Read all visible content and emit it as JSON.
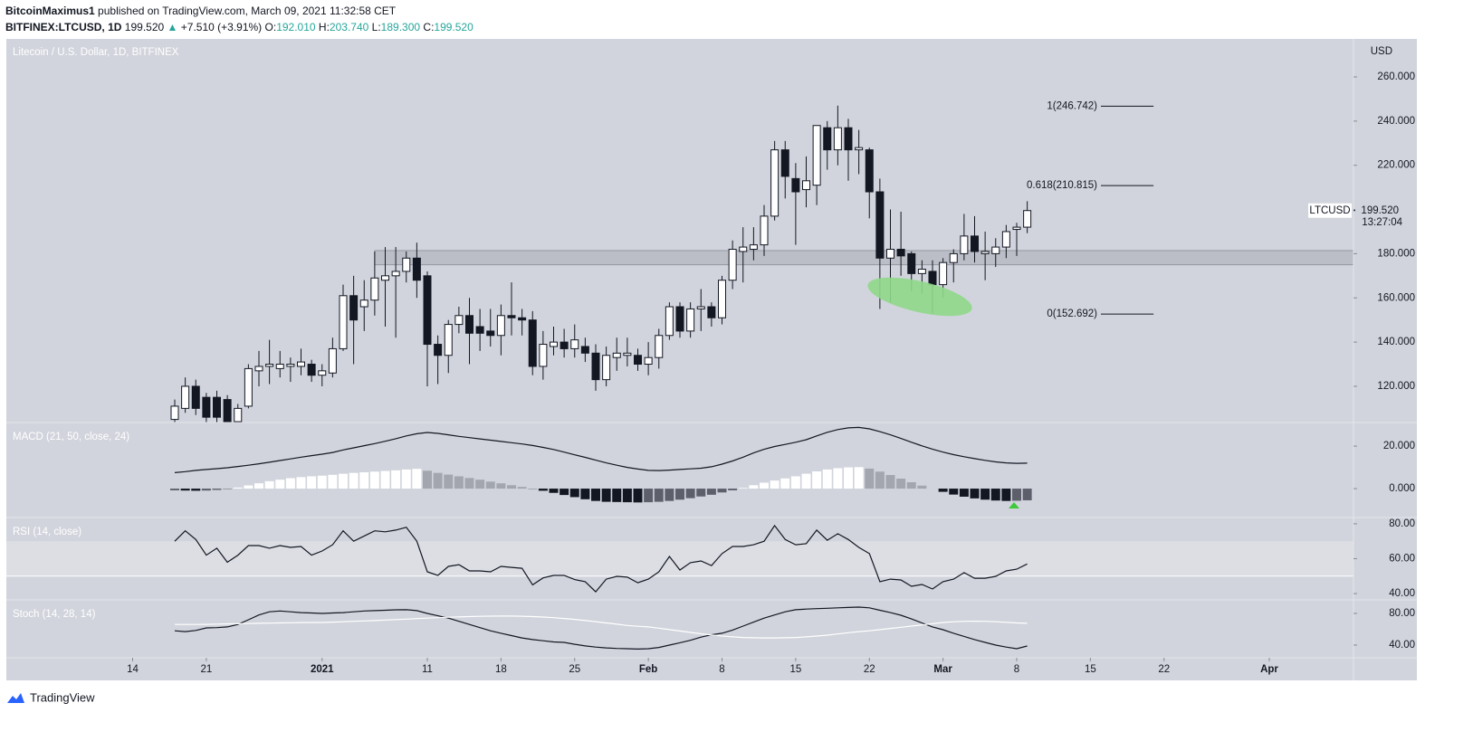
{
  "header": {
    "author": "BitcoinMaximus1",
    "published": "published on TradingView.com, March 09, 2021 11:32:58 CET",
    "symbol": "BITFINEX:LTCUSD, 1D",
    "last": "199.520",
    "change_arrow": "▲",
    "change": "+7.510 (+3.91%)",
    "ohlc": [
      {
        "label": "O:",
        "value": "192.010"
      },
      {
        "label": "H:",
        "value": "203.740"
      },
      {
        "label": "L:",
        "value": "189.300"
      },
      {
        "label": "C:",
        "value": "199.520"
      }
    ]
  },
  "footer": {
    "brand": "TradingView"
  },
  "chart_data": {
    "type": "candlestick",
    "title": "Litecoin / U.S. Dollar, 1D, BITFINEX",
    "y_unit": "USD",
    "up_color": "#ffffff",
    "down_color": "#131722",
    "x": [
      "2020-12-18",
      "2020-12-19",
      "2020-12-20",
      "2020-12-21",
      "2020-12-22",
      "2020-12-23",
      "2020-12-24",
      "2020-12-25",
      "2020-12-26",
      "2020-12-27",
      "2020-12-28",
      "2020-12-29",
      "2020-12-30",
      "2020-12-31",
      "2021-01-01",
      "2021-01-02",
      "2021-01-03",
      "2021-01-04",
      "2021-01-05",
      "2021-01-06",
      "2021-01-07",
      "2021-01-08",
      "2021-01-09",
      "2021-01-10",
      "2021-01-11",
      "2021-01-12",
      "2021-01-13",
      "2021-01-14",
      "2021-01-15",
      "2021-01-16",
      "2021-01-17",
      "2021-01-18",
      "2021-01-19",
      "2021-01-20",
      "2021-01-21",
      "2021-01-22",
      "2021-01-23",
      "2021-01-24",
      "2021-01-25",
      "2021-01-26",
      "2021-01-27",
      "2021-01-28",
      "2021-01-29",
      "2021-01-30",
      "2021-01-31",
      "2021-02-01",
      "2021-02-02",
      "2021-02-03",
      "2021-02-04",
      "2021-02-05",
      "2021-02-06",
      "2021-02-07",
      "2021-02-08",
      "2021-02-09",
      "2021-02-10",
      "2021-02-11",
      "2021-02-12",
      "2021-02-13",
      "2021-02-14",
      "2021-02-15",
      "2021-02-16",
      "2021-02-17",
      "2021-02-18",
      "2021-02-19",
      "2021-02-20",
      "2021-02-21",
      "2021-02-22",
      "2021-02-23",
      "2021-02-24",
      "2021-02-25",
      "2021-02-26",
      "2021-02-27",
      "2021-02-28",
      "2021-03-01",
      "2021-03-02",
      "2021-03-03",
      "2021-03-04",
      "2021-03-05",
      "2021-03-06",
      "2021-03-07",
      "2021-03-08",
      "2021-03-09"
    ],
    "open": [
      105,
      110,
      120,
      115,
      115,
      114,
      104,
      111,
      127,
      129,
      128,
      129,
      129,
      130,
      125,
      126,
      137,
      161,
      156,
      159,
      168,
      170,
      172,
      178,
      170,
      139,
      134,
      148,
      152,
      147,
      145,
      143,
      152,
      151,
      150,
      129,
      138,
      140,
      137,
      138,
      135,
      123,
      133,
      134,
      134,
      130,
      133,
      143,
      156,
      145,
      155,
      156,
      151,
      168,
      181,
      182,
      184,
      197,
      227,
      214,
      209,
      211,
      237,
      227,
      237,
      227,
      227,
      208,
      178,
      182,
      180,
      171,
      172,
      166,
      176,
      180,
      188,
      180,
      180,
      183,
      191,
      192.01
    ],
    "high": [
      114,
      124,
      123,
      117,
      118,
      116,
      112,
      130,
      136,
      141,
      136,
      133,
      137,
      132,
      130,
      142,
      166,
      170,
      168,
      181,
      183,
      183,
      181,
      185,
      172,
      143,
      150,
      156,
      160,
      155,
      155,
      157,
      167,
      155,
      154,
      145,
      147,
      146,
      148,
      142,
      139,
      138,
      142,
      142,
      137,
      140,
      146,
      158,
      158,
      158,
      164,
      158,
      170,
      186,
      192,
      192,
      202,
      231,
      231,
      221,
      224,
      238,
      240,
      247,
      241,
      236,
      228,
      214,
      200,
      199,
      181,
      177,
      177,
      178,
      182,
      198,
      197,
      190,
      187,
      193,
      194,
      203.74
    ],
    "low": [
      100,
      108,
      107,
      100,
      102,
      98,
      100,
      110,
      120,
      121,
      124,
      122,
      125,
      122,
      120,
      124,
      136,
      130,
      145,
      152,
      147,
      142,
      167,
      160,
      120,
      121,
      126,
      144,
      130,
      136,
      138,
      134,
      143,
      143,
      125,
      123,
      134,
      133,
      133,
      131,
      118,
      120,
      127,
      129,
      127,
      125,
      128,
      141,
      142,
      142,
      145,
      147,
      148,
      164,
      167,
      177,
      179,
      195,
      205,
      184,
      201,
      202,
      218,
      220,
      213,
      216,
      196,
      155,
      158,
      170,
      163,
      162,
      153,
      160,
      167,
      177,
      176,
      168,
      174,
      178,
      179,
      189.3
    ],
    "close": [
      111,
      120,
      110,
      106,
      106,
      103,
      110,
      128,
      129,
      130,
      130,
      130,
      131,
      125,
      127,
      137,
      161,
      150,
      159,
      169,
      170,
      172,
      178,
      168,
      139,
      134,
      148,
      152,
      144,
      144,
      143,
      152,
      151,
      150,
      129,
      139,
      140,
      137,
      141,
      135,
      123,
      134,
      135,
      135,
      130,
      133,
      143,
      156,
      145,
      155,
      156,
      151,
      168,
      182,
      183,
      184,
      197,
      227,
      215,
      208,
      213,
      238,
      227,
      237,
      227,
      228,
      208,
      178,
      182,
      179,
      171,
      173,
      166,
      176,
      180,
      188,
      181,
      181,
      183,
      190,
      192,
      199.52
    ],
    "xlim": [
      "2020-12-02",
      "2021-04-09"
    ],
    "xticks": [
      {
        "value": "2020-12-14",
        "label": "14"
      },
      {
        "value": "2020-12-21",
        "label": "21"
      },
      {
        "value": "2021-01-01",
        "label": "2021"
      },
      {
        "value": "2021-01-11",
        "label": "11"
      },
      {
        "value": "2021-01-18",
        "label": "18"
      },
      {
        "value": "2021-01-25",
        "label": "25"
      },
      {
        "value": "2021-02-01",
        "label": "Feb"
      },
      {
        "value": "2021-02-08",
        "label": "8"
      },
      {
        "value": "2021-02-15",
        "label": "15"
      },
      {
        "value": "2021-02-22",
        "label": "22"
      },
      {
        "value": "2021-03-01",
        "label": "Mar"
      },
      {
        "value": "2021-03-08",
        "label": "8"
      },
      {
        "value": "2021-03-15",
        "label": "15"
      },
      {
        "value": "2021-03-22",
        "label": "22"
      },
      {
        "value": "2021-04-01",
        "label": "Apr"
      }
    ],
    "ylim": [
      103.6,
      277.2
    ],
    "yticks": [
      {
        "value": 120,
        "label": "120.000"
      },
      {
        "value": 140,
        "label": "140.000"
      },
      {
        "value": 160,
        "label": "160.000"
      },
      {
        "value": 180,
        "label": "180.000"
      },
      {
        "value": 200,
        "label": "200.000"
      },
      {
        "value": 220,
        "label": "220.000"
      },
      {
        "value": 240,
        "label": "240.000"
      },
      {
        "value": 260,
        "label": "260.000"
      }
    ],
    "grid": false,
    "zone": {
      "x0": "2021-01-06",
      "y": [
        175,
        181.4
      ],
      "color": "#a9acb4"
    },
    "fib": {
      "x": [
        "2021-03-16",
        "2021-03-21"
      ],
      "levels": [
        {
          "value": 246.742,
          "label": "1(246.742)"
        },
        {
          "value": 210.815,
          "label": "0.618(210.815)"
        },
        {
          "value": 152.692,
          "label": "0(152.692)"
        }
      ]
    },
    "last": {
      "symbol": "LTCUSD",
      "value": 199.52,
      "label": "199.520",
      "countdown": "13:27:04"
    },
    "indicators": [
      {
        "type": "macd",
        "title": "MACD (21, 50, close, 24)",
        "ylim": [
          -13.6,
          31.1
        ],
        "yticks": [
          {
            "value": 0,
            "label": "0.000"
          },
          {
            "value": 20,
            "label": "20.000"
          }
        ],
        "series": [
          {
            "type": "histogram",
            "colors": {
              "up_pos": "#ffffff",
              "down_pos": "#a3a6ae",
              "down_neg": "#131722",
              "up_neg": "#5d606b"
            },
            "values": [
              -0.8,
              -0.9,
              -1,
              -0.9,
              -0.6,
              -0.2,
              0.5,
              1.5,
              2.5,
              3.5,
              4.2,
              4.9,
              5.4,
              5.8,
              6.1,
              6.5,
              7,
              7.4,
              7.7,
              8,
              8.3,
              8.6,
              9,
              9.3,
              8.4,
              7.4,
              6.6,
              5.8,
              5,
              4.2,
              3.3,
              2.5,
              1.6,
              0.8,
              -0.1,
              -1,
              -2,
              -3,
              -4,
              -5,
              -5.8,
              -6.2,
              -6.3,
              -6.4,
              -6.5,
              -6.4,
              -6.2,
              -5.8,
              -5.2,
              -4.5,
              -3.7,
              -2.9,
              -1.8,
              -0.8,
              0.3,
              1.6,
              2.8,
              3.8,
              4.8,
              5.8,
              7,
              8.1,
              9,
              9.6,
              10,
              10.1,
              9.4,
              8,
              6.4,
              4.7,
              3,
              1.4,
              0,
              -1.5,
              -2.8,
              -3.8,
              -4.6,
              -5.2,
              -5.6,
              -5.8,
              -5.7,
              -5.5
            ]
          },
          {
            "type": "line",
            "color": "#131722",
            "values": [
              7.5,
              8,
              8.6,
              9,
              9.4,
              9.8,
              10.4,
              11,
              11.7,
              12.4,
              13.2,
              14,
              14.8,
              15.5,
              16.2,
              17,
              18.2,
              19.2,
              20.2,
              21.2,
              22.3,
              23.5,
              24.8,
              25.8,
              26.4,
              26,
              25.3,
              24.6,
              24,
              23.4,
              22.8,
              22.2,
              21.6,
              21,
              20.3,
              19.4,
              18.4,
              17.2,
              15.9,
              14.7,
              13.4,
              12.1,
              11,
              10,
              9.2,
              8.6,
              8.5,
              8.7,
              9,
              9.3,
              9.6,
              10.3,
              11.5,
              13,
              14.8,
              16.8,
              18.5,
              19.8,
              20.8,
              21.8,
              23,
              24.8,
              26.5,
              27.8,
              28.6,
              28.8,
              28.1,
              26.8,
              25.3,
              23.6,
              21.8,
              20.1,
              18.6,
              17.2,
              16,
              15,
              14.1,
              13.3,
              12.6,
              12.1,
              11.9,
              12
            ]
          }
        ]
      },
      {
        "type": "line",
        "title": "RSI (14, close)",
        "ylim": [
          36.4,
          83.6
        ],
        "yticks": [
          {
            "value": 40,
            "label": "40.00"
          },
          {
            "value": 60,
            "label": "60.00"
          },
          {
            "value": 80,
            "label": "80.00"
          }
        ],
        "band": {
          "range": [
            50,
            70
          ],
          "color": "#dcdee4"
        },
        "levels": [
          50
        ],
        "series": [
          {
            "type": "line",
            "color": "#131722",
            "values": [
              70,
              76,
              71,
              62,
              66,
              58,
              62,
              67.5,
              67.5,
              66,
              67.5,
              66.5,
              67,
              62,
              64.4,
              68,
              76,
              70,
              73,
              76,
              75.4,
              76.4,
              78,
              70,
              52.5,
              50.4,
              55.6,
              56.6,
              53,
              53,
              52.5,
              55.6,
              55,
              54.5,
              45,
              49,
              50.4,
              50.4,
              48,
              46.8,
              41,
              48.3,
              49.9,
              49.4,
              46.2,
              48.3,
              52.5,
              61.3,
              53.5,
              57.7,
              58.7,
              56,
              62.9,
              67,
              67,
              68,
              70,
              79,
              71,
              68,
              68.6,
              76.4,
              70.6,
              74.3,
              71,
              66.5,
              62.9,
              46.8,
              48.3,
              47.8,
              44.2,
              45.2,
              42.6,
              46.8,
              48.3,
              52,
              48.8,
              48.8,
              49.9,
              53,
              54,
              57
            ]
          }
        ]
      },
      {
        "type": "line",
        "title": "Stoch (14, 28, 14)",
        "ylim": [
          24,
          97.1
        ],
        "yticks": [
          {
            "value": 40,
            "label": "40.00"
          },
          {
            "value": 80,
            "label": "80.00"
          }
        ],
        "series": [
          {
            "type": "line",
            "color": "#131722",
            "values": [
              58,
              57,
              58.5,
              61.7,
              62,
              63,
              66,
              72,
              78,
              82,
              83,
              82,
              81,
              80.5,
              80,
              80.5,
              81,
              82,
              83,
              83.5,
              84,
              84.5,
              84.6,
              83.5,
              80,
              77,
              74,
              70,
              66,
              62,
              58,
              55,
              52,
              49,
              47,
              45.5,
              44,
              43.4,
              41,
              39,
              37.5,
              36.5,
              35.8,
              35.4,
              35,
              35.4,
              37,
              40,
              43,
              46,
              50,
              53,
              55,
              59,
              64,
              69,
              74,
              78,
              82,
              84.6,
              85.5,
              86,
              86.5,
              87,
              87.5,
              88,
              87,
              84,
              81,
              77.7,
              73,
              68,
              63,
              59.4,
              55,
              51,
              47,
              43.4,
              40,
              37.5,
              35.4,
              38.9
            ]
          },
          {
            "type": "line",
            "color": "#ffffff",
            "values": [
              66,
              66,
              66,
              66.2,
              66.5,
              66.8,
              67,
              67.2,
              67.5,
              67.7,
              68,
              68.2,
              68.4,
              68.5,
              68.6,
              69,
              69.5,
              70,
              70.5,
              71,
              71.6,
              72.2,
              72.8,
              73.4,
              74,
              74.6,
              75.2,
              75.6,
              76,
              76.3,
              76.5,
              76.6,
              76.6,
              76.4,
              76,
              75.4,
              74.6,
              73.6,
              72.4,
              71,
              69.6,
              68,
              66.4,
              64.8,
              63.8,
              63,
              61.3,
              59.5,
              57.8,
              56,
              54.3,
              52.8,
              51.4,
              50.4,
              49.6,
              49.2,
              49,
              49,
              49.2,
              49.6,
              50.4,
              51.4,
              52.6,
              54,
              55.6,
              57,
              58,
              59.5,
              61,
              62.5,
              64,
              65.5,
              67,
              68.6,
              69.5,
              70,
              70.2,
              70,
              69.5,
              68.8,
              68,
              67.5
            ]
          }
        ]
      }
    ]
  }
}
